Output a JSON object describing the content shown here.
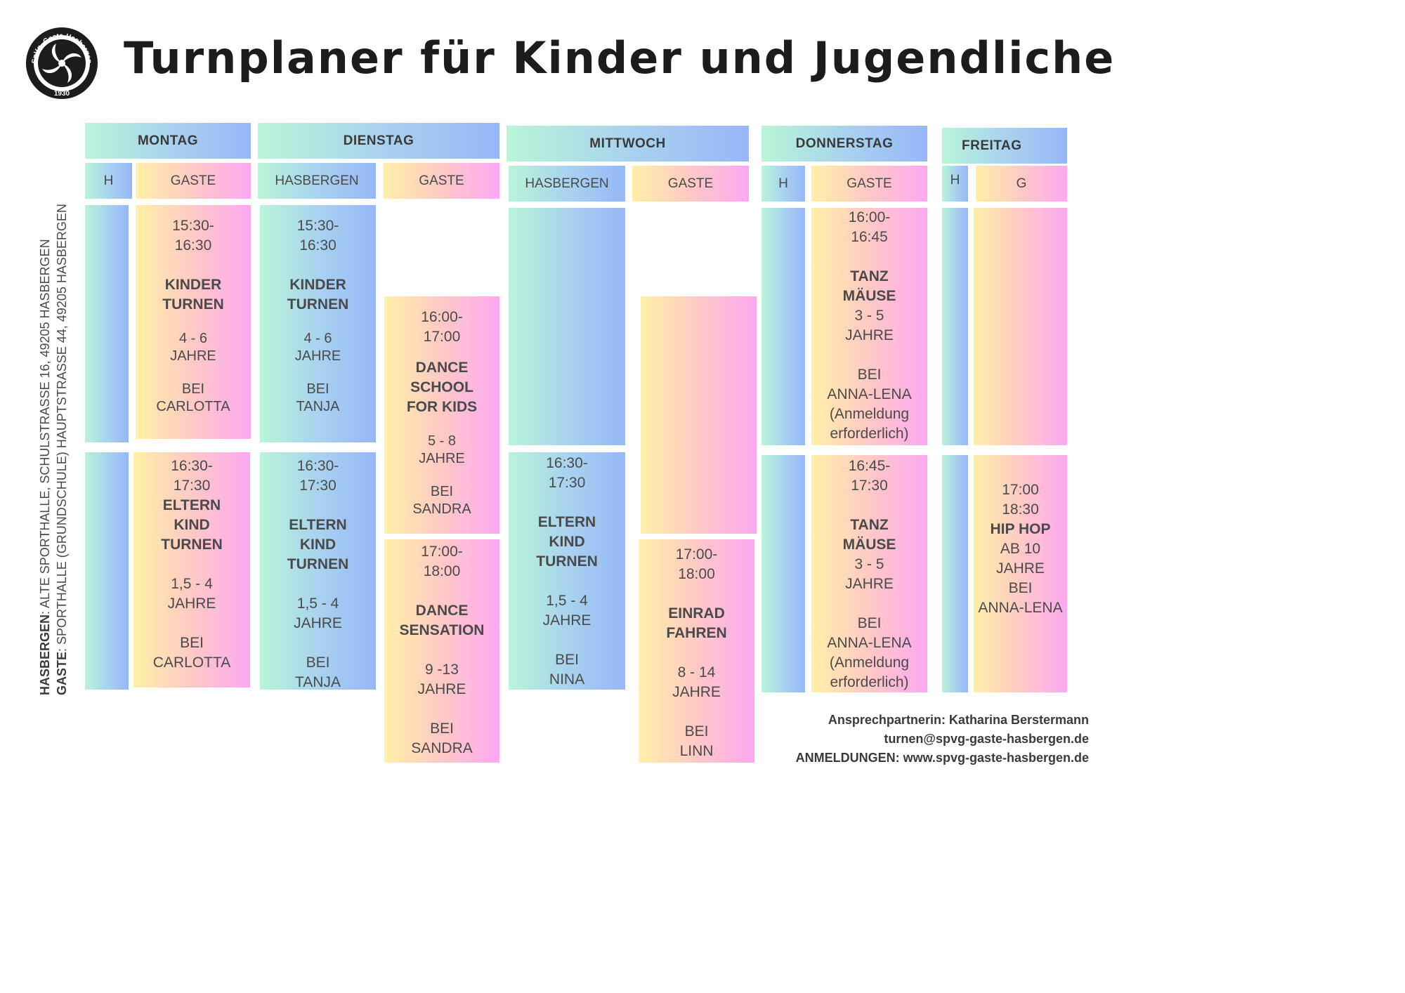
{
  "title": "Turnplaner für Kinder und Jugendliche",
  "logo": {
    "text_top": "SpVg. Gaste-Hasbergen",
    "year": "1930"
  },
  "colors": {
    "mint_gradient": [
      "#b9f5d8",
      "#96b7f8"
    ],
    "warm_gradient": [
      "#fff0a8",
      "#fca8f2"
    ]
  },
  "days": {
    "mon": "MONTAG",
    "tue": "DIENSTAG",
    "wed": "MITTWOCH",
    "thu": "DONNERSTAG",
    "fri": "FREITAG"
  },
  "sub": {
    "mon_h": "H",
    "mon_g": "GASTE",
    "tue_h": "HASBERGEN",
    "tue_g": "GASTE",
    "wed_h": "HASBERGEN",
    "wed_g": "GASTE",
    "thu_h": "H",
    "thu_g": "GASTE",
    "fri_h": "H",
    "fri_g": "G"
  },
  "sessions": {
    "mon1": {
      "time": "15:30-\n16:30",
      "name": "KINDER\nTURNEN",
      "age": "4 - 6\nJAHRE",
      "by": "BEI\nCARLOTTA"
    },
    "mon2": {
      "time": "16:30-\n17:30",
      "name": "ELTERN\nKIND\nTURNEN",
      "age": "1,5 - 4\nJAHRE",
      "by": "BEI\nCARLOTTA"
    },
    "tue1": {
      "time": "15:30-\n16:30",
      "name": "KINDER\nTURNEN",
      "age": "4 - 6\nJAHRE",
      "by": "BEI\nTANJA"
    },
    "tue2": {
      "time": "16:30-\n17:30",
      "name": "ELTERN\nKIND\nTURNEN",
      "age": "1,5 - 4\nJAHRE",
      "by": "BEI\nTANJA"
    },
    "tue3": {
      "time": "16:00-\n17:00",
      "name": "DANCE\nSCHOOL\nFOR KIDS",
      "age": "5 - 8\nJAHRE",
      "by": "BEI\nSANDRA"
    },
    "tue4": {
      "time": "17:00-\n18:00",
      "name": "DANCE\nSENSATION",
      "age": "9 -13\nJAHRE",
      "by": "BEI\nSANDRA"
    },
    "wed1": {
      "time": "16:30-\n17:30",
      "name": "ELTERN\nKIND\nTURNEN",
      "age": "1,5 - 4\nJAHRE",
      "by": "BEI\nNINA"
    },
    "wed2": {
      "time": "17:00-\n18:00",
      "name": "EINRAD\nFAHREN",
      "age": "8 - 14\nJAHRE",
      "by": "BEI\nLINN"
    },
    "thu1": {
      "time": "16:00-\n16:45",
      "name": "TANZ\nMÄUSE",
      "age": "3 - 5\nJAHRE",
      "by": "BEI\nANNA-LENA\n(Anmeldung\nerforderlich)"
    },
    "thu2": {
      "time": "16:45-\n17:30",
      "name": "TANZ\nMÄUSE",
      "age": "3 - 5\nJAHRE",
      "by": "BEI\nANNA-LENA\n(Anmeldung\nerforderlich)"
    },
    "fri1": {
      "time": "17:00\n18:30",
      "name": "HIP HOP",
      "age": "AB 10\nJAHRE",
      "by": "BEI\nANNA-LENA"
    }
  },
  "locations": {
    "h_label": "HASBERGEN",
    "h_text": ": ALTE SPORTHALLE, SCHULSTRASSE 16, 49205 HASBERGEN",
    "g_label": "GASTE",
    "g_text": ": SPORTHALLE (GRUNDSCHULE) HAUPTSTRASSE 44, 49205 HASBERGEN"
  },
  "contact": {
    "person": "Ansprechpartnerin: Katharina Berstermann",
    "email": "turnen@spvg-gaste-hasbergen.de",
    "registration": "ANMELDUNGEN: www.spvg-gaste-hasbergen.de"
  }
}
